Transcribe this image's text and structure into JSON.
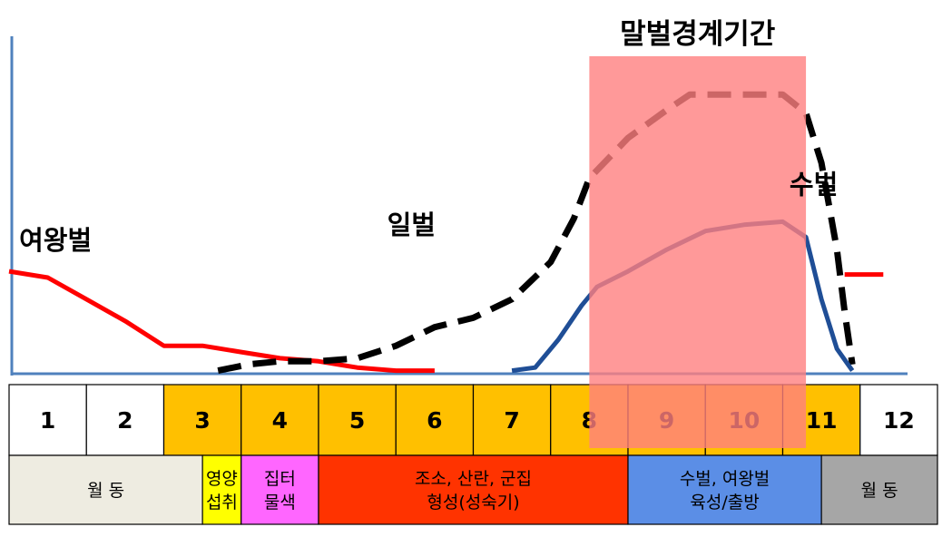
{
  "chart_data": {
    "type": "line",
    "title": "말벌경계기간",
    "xlabel": "",
    "ylabel": "",
    "categories": [
      "1",
      "2",
      "3",
      "4",
      "5",
      "6",
      "7",
      "8",
      "9",
      "10",
      "11",
      "12"
    ],
    "xlim": [
      0.5,
      12.5
    ],
    "ylim": [
      0,
      100
    ],
    "grid": false,
    "legend": "none",
    "alert_period": {
      "label": "말벌경계기간",
      "start": 8,
      "end": 10.8,
      "color": "#ff7f7f"
    },
    "series": [
      {
        "name": "여왕벌",
        "color": "#ff0000",
        "style": "solid",
        "segments": [
          [
            [
              0.5,
              33
            ],
            [
              1.0,
              31
            ],
            [
              1.5,
              24
            ],
            [
              2.0,
              17
            ],
            [
              2.5,
              9
            ],
            [
              3.0,
              9
            ],
            [
              3.5,
              7
            ],
            [
              4.0,
              5
            ],
            [
              4.5,
              4
            ],
            [
              5.0,
              2
            ],
            [
              5.5,
              1
            ],
            [
              6.0,
              1
            ]
          ],
          [
            [
              11.3,
              32
            ],
            [
              11.8,
              32
            ]
          ]
        ]
      },
      {
        "name": "일벌",
        "color": "#000000",
        "style": "dashed",
        "segments": [
          [
            [
              3.2,
              1
            ],
            [
              3.6,
              3
            ],
            [
              4.0,
              4
            ],
            [
              4.5,
              4
            ],
            [
              5.0,
              5
            ],
            [
              5.5,
              9
            ],
            [
              6.0,
              15
            ],
            [
              6.5,
              18
            ],
            [
              7.0,
              24
            ],
            [
              7.5,
              36
            ],
            [
              7.8,
              50
            ],
            [
              8.0,
              63
            ],
            [
              8.5,
              76
            ],
            [
              9.0,
              85
            ],
            [
              9.3,
              90
            ],
            [
              10.0,
              90
            ],
            [
              10.5,
              90
            ],
            [
              10.8,
              84
            ],
            [
              11.0,
              68
            ],
            [
              11.2,
              40
            ],
            [
              11.3,
              20
            ],
            [
              11.4,
              3
            ]
          ]
        ]
      },
      {
        "name": "수벌",
        "color": "#1f4e96",
        "style": "solid",
        "segments": [
          [
            [
              7.0,
              1
            ],
            [
              7.3,
              2
            ],
            [
              7.6,
              11
            ],
            [
              7.9,
              22
            ],
            [
              8.1,
              28
            ],
            [
              8.5,
              33
            ],
            [
              9.0,
              40
            ],
            [
              9.5,
              46
            ],
            [
              10.0,
              48
            ],
            [
              10.5,
              49
            ],
            [
              10.8,
              44
            ],
            [
              11.0,
              24
            ],
            [
              11.2,
              8
            ],
            [
              11.4,
              1
            ]
          ]
        ]
      }
    ],
    "annotations": [
      {
        "text": "여왕벌",
        "x": 1.1,
        "y": 40
      },
      {
        "text": "일벌",
        "x": 5.7,
        "y": 45
      },
      {
        "text": "수벌",
        "x": 10.9,
        "y": 58
      }
    ],
    "stages": [
      {
        "label": "월 동",
        "start": 0.5,
        "end": 3.0,
        "color": "#eeece1"
      },
      {
        "label": "영양\n섭취",
        "start": 3.0,
        "end": 3.5,
        "color": "#ffff00"
      },
      {
        "label": "집터\n물색",
        "start": 3.5,
        "end": 4.5,
        "color": "#ff66ff"
      },
      {
        "label": "조소, 산란, 군집\n형성(성숙기)",
        "start": 4.5,
        "end": 8.5,
        "color": "#ff3300"
      },
      {
        "label": "수벌, 여왕벌\n육성/출방",
        "start": 8.5,
        "end": 11.0,
        "color": "#5b8ee6"
      },
      {
        "label": "월 동",
        "start": 11.0,
        "end": 12.5,
        "color": "#a6a6a6"
      }
    ],
    "month_colors": [
      "#ffffff",
      "#ffffff",
      "#ffc000",
      "#ffc000",
      "#ffc000",
      "#ffc000",
      "#ffc000",
      "#ffc000",
      "#ffc000",
      "#ffc000",
      "#ffc000",
      "#ffffff"
    ]
  }
}
